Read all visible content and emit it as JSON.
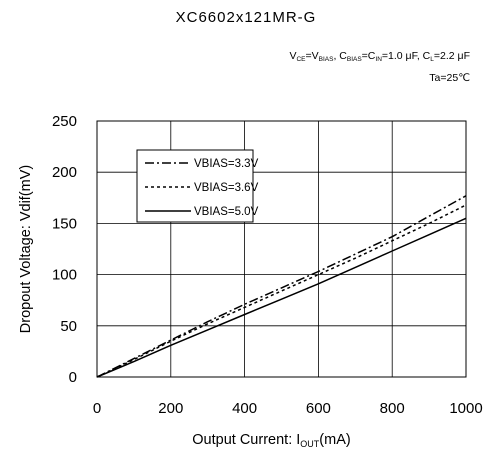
{
  "header": {
    "title": "XC6602x121MR-G",
    "conditions_line1": [
      {
        "t": "V"
      },
      {
        "t": "CE",
        "sub": true
      },
      {
        "t": "=V"
      },
      {
        "t": "BIAS",
        "sub": true
      },
      {
        "t": ", C"
      },
      {
        "t": "BIAS",
        "sub": true
      },
      {
        "t": "=C"
      },
      {
        "t": "IN",
        "sub": true
      },
      {
        "t": "=1.0 μF, C"
      },
      {
        "t": "L",
        "sub": true
      },
      {
        "t": "=2.2 μF"
      }
    ],
    "conditions_line2": "Ta=25℃"
  },
  "chart_data": {
    "type": "line",
    "title": "XC6602x121MR-G",
    "xlabel": "Output Current: IOUT(mA)",
    "xlabel_parts": [
      {
        "t": "Output Current: I"
      },
      {
        "t": "OUT",
        "sub": true
      },
      {
        "t": "(mA)"
      }
    ],
    "ylabel": "Dropout Voltage: Vdif(mV)",
    "xlim": [
      0,
      1000
    ],
    "ylim": [
      0,
      250
    ],
    "xticks": [
      0,
      200,
      400,
      600,
      800,
      1000
    ],
    "yticks": [
      0,
      50,
      100,
      150,
      200,
      250
    ],
    "grid": true,
    "legend_position": "upper-left",
    "series": [
      {
        "name": "VBIAS=3.3V",
        "style": "dashdot",
        "color": "#000000",
        "x": [
          0,
          100,
          200,
          300,
          400,
          500,
          600,
          700,
          800,
          900,
          1000
        ],
        "y": [
          0,
          18,
          36,
          54,
          71,
          87,
          103,
          120,
          137,
          157,
          177
        ]
      },
      {
        "name": "VBIAS=3.6V",
        "style": "dotted",
        "color": "#000000",
        "x": [
          0,
          100,
          200,
          300,
          400,
          500,
          600,
          700,
          800,
          900,
          1000
        ],
        "y": [
          0,
          17,
          35,
          52,
          68,
          84,
          100,
          116,
          133,
          150,
          168
        ]
      },
      {
        "name": "VBIAS=5.0V",
        "style": "solid",
        "color": "#000000",
        "x": [
          0,
          100,
          200,
          300,
          400,
          500,
          600,
          700,
          800,
          900,
          1000
        ],
        "y": [
          0,
          15,
          31,
          46,
          61,
          76,
          91,
          107,
          123,
          139,
          155
        ]
      }
    ]
  }
}
